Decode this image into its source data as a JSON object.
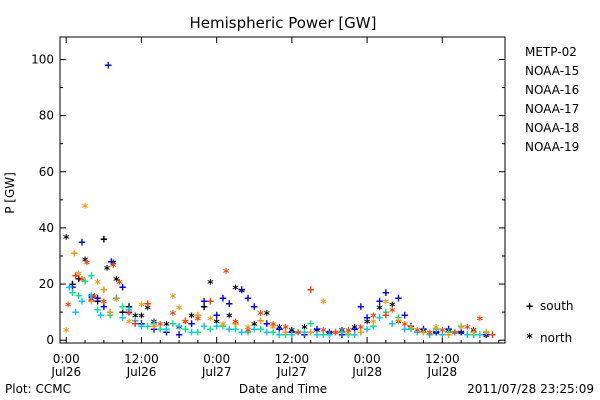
{
  "chart_data": {
    "type": "scatter",
    "title": "Hemispheric Power [GW]",
    "xlabel": "Date and Time",
    "ylabel": "P [GW]",
    "xlim": [
      -1,
      70
    ],
    "ylim": [
      -1,
      108
    ],
    "y_ticks": [
      0,
      20,
      40,
      60,
      80,
      100
    ],
    "x_ticks": [
      {
        "x": 0,
        "time": "0:00",
        "date": "Jul26"
      },
      {
        "x": 12,
        "time": "12:00",
        "date": "Jul26"
      },
      {
        "x": 24,
        "time": "0:00",
        "date": "Jul27"
      },
      {
        "x": 36,
        "time": "12:00",
        "date": "Jul27"
      },
      {
        "x": 48,
        "time": "0:00",
        "date": "Jul28"
      },
      {
        "x": 60,
        "time": "12:00",
        "date": "Jul28"
      }
    ],
    "x_units": "hours since 2011/07/26 00:00 UT",
    "markers": {
      "south": "+",
      "north": "*"
    },
    "marker_legend": [
      {
        "symbol": "+",
        "label": "south"
      },
      {
        "symbol": "*",
        "label": "north"
      }
    ],
    "series": [
      {
        "name": "METP-02",
        "color": "#000000",
        "points": [
          [
            0,
            36,
            "n"
          ],
          [
            1,
            20,
            "s"
          ],
          [
            2,
            22,
            "s"
          ],
          [
            3,
            28,
            "n"
          ],
          [
            4,
            15,
            "n"
          ],
          [
            5,
            14,
            "s"
          ],
          [
            6,
            36,
            "s"
          ],
          [
            6.5,
            25,
            "n"
          ],
          [
            7.5,
            27,
            "n"
          ],
          [
            8,
            21,
            "n"
          ],
          [
            9,
            10,
            "s"
          ],
          [
            10,
            12,
            "s"
          ],
          [
            11,
            8,
            "n"
          ],
          [
            12,
            8,
            "n"
          ],
          [
            13,
            11,
            "n"
          ],
          [
            14,
            6,
            "n"
          ],
          [
            16,
            5,
            "n"
          ],
          [
            18,
            4,
            "n"
          ],
          [
            20,
            8,
            "n"
          ],
          [
            22,
            12,
            "s"
          ],
          [
            23,
            20,
            "n"
          ],
          [
            24,
            6,
            "n"
          ],
          [
            26,
            8,
            "n"
          ],
          [
            27,
            18,
            "n"
          ],
          [
            28,
            17,
            "n"
          ],
          [
            30,
            5,
            "n"
          ],
          [
            32,
            9,
            "n"
          ],
          [
            34,
            4,
            "n"
          ],
          [
            36,
            3,
            "n"
          ],
          [
            38,
            4,
            "n"
          ],
          [
            40,
            3,
            "n"
          ],
          [
            42,
            2,
            "n"
          ],
          [
            44,
            3,
            "n"
          ],
          [
            46,
            4,
            "n"
          ],
          [
            48,
            6,
            "n"
          ],
          [
            50,
            11,
            "n"
          ],
          [
            52,
            12,
            "n"
          ],
          [
            53,
            6,
            "n"
          ],
          [
            55,
            4,
            "n"
          ],
          [
            57,
            3,
            "n"
          ],
          [
            59,
            2,
            "n"
          ],
          [
            61,
            3,
            "n"
          ],
          [
            63,
            2,
            "n"
          ],
          [
            65,
            3,
            "n"
          ],
          [
            67,
            1,
            "n"
          ]
        ]
      },
      {
        "name": "NOAA-15",
        "color": "#0000ff",
        "points": [
          [
            1,
            19,
            "s"
          ],
          [
            2.5,
            35,
            "s"
          ],
          [
            4,
            14,
            "n"
          ],
          [
            5,
            15,
            "s"
          ],
          [
            6,
            12,
            "s"
          ],
          [
            6.7,
            98,
            "s"
          ],
          [
            7.2,
            28,
            "s"
          ],
          [
            8,
            15,
            "s"
          ],
          [
            9,
            19,
            "s"
          ],
          [
            10,
            10,
            "s"
          ],
          [
            12,
            6,
            "s"
          ],
          [
            14,
            4,
            "s"
          ],
          [
            16,
            3,
            "s"
          ],
          [
            18,
            2,
            "s"
          ],
          [
            20,
            6,
            "s"
          ],
          [
            22,
            14,
            "s"
          ],
          [
            24,
            9,
            "s"
          ],
          [
            25,
            15,
            "s"
          ],
          [
            26,
            13,
            "s"
          ],
          [
            28,
            18,
            "s"
          ],
          [
            29,
            15,
            "s"
          ],
          [
            30,
            12,
            "s"
          ],
          [
            32,
            6,
            "s"
          ],
          [
            34,
            4,
            "s"
          ],
          [
            36,
            3,
            "s"
          ],
          [
            38,
            2,
            "s"
          ],
          [
            40,
            4,
            "s"
          ],
          [
            42,
            3,
            "s"
          ],
          [
            44,
            2,
            "s"
          ],
          [
            46,
            4,
            "s"
          ],
          [
            47,
            12,
            "s"
          ],
          [
            48,
            8,
            "s"
          ],
          [
            50,
            14,
            "s"
          ],
          [
            51,
            17,
            "s"
          ],
          [
            53,
            15,
            "s"
          ],
          [
            54,
            9,
            "s"
          ],
          [
            55,
            5,
            "s"
          ],
          [
            57,
            4,
            "s"
          ],
          [
            59,
            3,
            "s"
          ],
          [
            61,
            4,
            "s"
          ],
          [
            63,
            3,
            "s"
          ],
          [
            65,
            2,
            "s"
          ],
          [
            67,
            2,
            "s"
          ]
        ]
      },
      {
        "name": "NOAA-16",
        "color": "#00c8ff",
        "points": [
          [
            0.5,
            19,
            "s"
          ],
          [
            1.5,
            10,
            "s"
          ],
          [
            2.5,
            14,
            "s"
          ],
          [
            4,
            16,
            "s"
          ],
          [
            5.5,
            9,
            "s"
          ],
          [
            7,
            10,
            "s"
          ],
          [
            8,
            15,
            "s"
          ],
          [
            9,
            8,
            "s"
          ],
          [
            10,
            11,
            "s"
          ],
          [
            11,
            7,
            "s"
          ],
          [
            12,
            5,
            "s"
          ],
          [
            14,
            6,
            "s"
          ],
          [
            16,
            4,
            "s"
          ],
          [
            18,
            5,
            "s"
          ],
          [
            20,
            3,
            "s"
          ],
          [
            22,
            5,
            "s"
          ],
          [
            24,
            5,
            "s"
          ],
          [
            26,
            4,
            "s"
          ],
          [
            28,
            3,
            "s"
          ],
          [
            30,
            4,
            "s"
          ],
          [
            32,
            3,
            "s"
          ],
          [
            34,
            2,
            "s"
          ],
          [
            36,
            2,
            "s"
          ],
          [
            38,
            3,
            "s"
          ],
          [
            40,
            2,
            "s"
          ],
          [
            42,
            2,
            "s"
          ],
          [
            44,
            3,
            "s"
          ],
          [
            46,
            2,
            "s"
          ],
          [
            48,
            4,
            "s"
          ],
          [
            50,
            8,
            "s"
          ],
          [
            52,
            6,
            "s"
          ],
          [
            54,
            4,
            "s"
          ],
          [
            56,
            3,
            "s"
          ],
          [
            58,
            2,
            "s"
          ],
          [
            60,
            2,
            "s"
          ],
          [
            62,
            3,
            "s"
          ],
          [
            64,
            2,
            "s"
          ],
          [
            66,
            2,
            "s"
          ]
        ]
      },
      {
        "name": "NOAA-17",
        "color": "#00e68c",
        "points": [
          [
            1,
            17,
            "s"
          ],
          [
            2,
            16,
            "s"
          ],
          [
            3,
            21,
            "s"
          ],
          [
            4,
            23,
            "s"
          ],
          [
            5,
            11,
            "s"
          ],
          [
            7,
            9,
            "s"
          ],
          [
            9,
            12,
            "s"
          ],
          [
            11,
            6,
            "s"
          ],
          [
            13,
            5,
            "s"
          ],
          [
            15,
            4,
            "s"
          ],
          [
            17,
            6,
            "s"
          ],
          [
            19,
            4,
            "s"
          ],
          [
            21,
            3,
            "s"
          ],
          [
            23,
            4,
            "s"
          ],
          [
            25,
            5,
            "s"
          ],
          [
            27,
            4,
            "s"
          ],
          [
            29,
            3,
            "s"
          ],
          [
            31,
            4,
            "s"
          ],
          [
            33,
            3,
            "s"
          ],
          [
            35,
            2,
            "s"
          ],
          [
            37,
            3,
            "s"
          ],
          [
            39,
            6,
            "s"
          ],
          [
            41,
            2,
            "s"
          ],
          [
            43,
            3,
            "s"
          ],
          [
            45,
            2,
            "s"
          ],
          [
            47,
            3,
            "s"
          ],
          [
            49,
            5,
            "s"
          ],
          [
            51,
            10,
            "s"
          ],
          [
            53,
            8,
            "s"
          ],
          [
            55,
            4,
            "s"
          ],
          [
            57,
            3,
            "s"
          ],
          [
            59,
            4,
            "s"
          ],
          [
            61,
            3,
            "s"
          ],
          [
            63,
            5,
            "s"
          ],
          [
            65,
            2,
            "s"
          ],
          [
            67,
            3,
            "s"
          ]
        ]
      },
      {
        "name": "NOAA-18",
        "color": "#ff9600",
        "points": [
          [
            0,
            3,
            "n"
          ],
          [
            1.3,
            31,
            "s"
          ],
          [
            2,
            23,
            "n"
          ],
          [
            3,
            47,
            "n"
          ],
          [
            4,
            14,
            "s"
          ],
          [
            5,
            20,
            "n"
          ],
          [
            6,
            18,
            "s"
          ],
          [
            7,
            10,
            "s"
          ],
          [
            8,
            14,
            "n"
          ],
          [
            10,
            6,
            "n"
          ],
          [
            12,
            12,
            "n"
          ],
          [
            14,
            5,
            "s"
          ],
          [
            17,
            15,
            "n"
          ],
          [
            18,
            11,
            "n"
          ],
          [
            19,
            7,
            "s"
          ],
          [
            21,
            9,
            "s"
          ],
          [
            23,
            7,
            "n"
          ],
          [
            25,
            5,
            "n"
          ],
          [
            27,
            6,
            "s"
          ],
          [
            29,
            4,
            "n"
          ],
          [
            31,
            7,
            "s"
          ],
          [
            33,
            4,
            "n"
          ],
          [
            35,
            3,
            "s"
          ],
          [
            37,
            2,
            "n"
          ],
          [
            39,
            3,
            "s"
          ],
          [
            41,
            13,
            "n"
          ],
          [
            43,
            3,
            "s"
          ],
          [
            45,
            2,
            "n"
          ],
          [
            47,
            3,
            "s"
          ],
          [
            49,
            6,
            "n"
          ],
          [
            51,
            13,
            "n"
          ],
          [
            53,
            7,
            "s"
          ],
          [
            55,
            4,
            "n"
          ],
          [
            57,
            3,
            "s"
          ],
          [
            59,
            4,
            "n"
          ],
          [
            61,
            2,
            "s"
          ],
          [
            63,
            4,
            "n"
          ],
          [
            65,
            3,
            "s"
          ],
          [
            67,
            2,
            "n"
          ]
        ]
      },
      {
        "name": "NOAA-19",
        "color": "#ff3c00",
        "points": [
          [
            0.3,
            12,
            "n"
          ],
          [
            1.5,
            23,
            "s"
          ],
          [
            2.5,
            21,
            "n"
          ],
          [
            3.3,
            27,
            "n"
          ],
          [
            4.5,
            15,
            "n"
          ],
          [
            6,
            13,
            "n"
          ],
          [
            7.5,
            26,
            "n"
          ],
          [
            8.5,
            20,
            "n"
          ],
          [
            10,
            9,
            "n"
          ],
          [
            11,
            6,
            "s"
          ],
          [
            13,
            13,
            "s"
          ],
          [
            15,
            5,
            "n"
          ],
          [
            17,
            9,
            "n"
          ],
          [
            19,
            6,
            "n"
          ],
          [
            21,
            7,
            "n"
          ],
          [
            23,
            14,
            "s"
          ],
          [
            25.5,
            24,
            "n"
          ],
          [
            27,
            6,
            "n"
          ],
          [
            29,
            3,
            "n"
          ],
          [
            31,
            9,
            "n"
          ],
          [
            33,
            5,
            "n"
          ],
          [
            35,
            4,
            "n"
          ],
          [
            37,
            2,
            "n"
          ],
          [
            39,
            18,
            "s"
          ],
          [
            41,
            3,
            "n"
          ],
          [
            43,
            2,
            "n"
          ],
          [
            45,
            3,
            "n"
          ],
          [
            47,
            4,
            "n"
          ],
          [
            49,
            8,
            "n"
          ],
          [
            51,
            9,
            "s"
          ],
          [
            52,
            10,
            "n"
          ],
          [
            54,
            5,
            "n"
          ],
          [
            56,
            3,
            "n"
          ],
          [
            58,
            2,
            "n"
          ],
          [
            60,
            3,
            "n"
          ],
          [
            62,
            2,
            "n"
          ],
          [
            64,
            4,
            "n"
          ],
          [
            66,
            7,
            "n"
          ],
          [
            68,
            2,
            "s"
          ]
        ]
      }
    ]
  },
  "footer": {
    "source": "Plot: CCMC",
    "timestamp": "2011/07/28 23:25:09"
  }
}
